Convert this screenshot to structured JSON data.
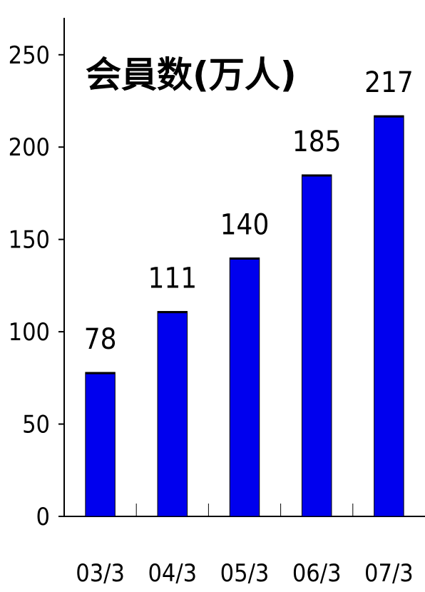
{
  "chart_data": {
    "type": "bar",
    "title": "会員数(万人)",
    "categories": [
      "03/3",
      "04/3",
      "05/3",
      "06/3",
      "07/3"
    ],
    "values": [
      78,
      111,
      140,
      185,
      217
    ],
    "ylim": [
      0,
      250
    ],
    "yticks": [
      0,
      50,
      100,
      150,
      200,
      250
    ],
    "xlabel": "",
    "ylabel": "",
    "grid": false,
    "data_labels": true,
    "colors": {
      "bar": "#0000ee",
      "bar_top": "#000000",
      "axis": "#000000"
    }
  }
}
